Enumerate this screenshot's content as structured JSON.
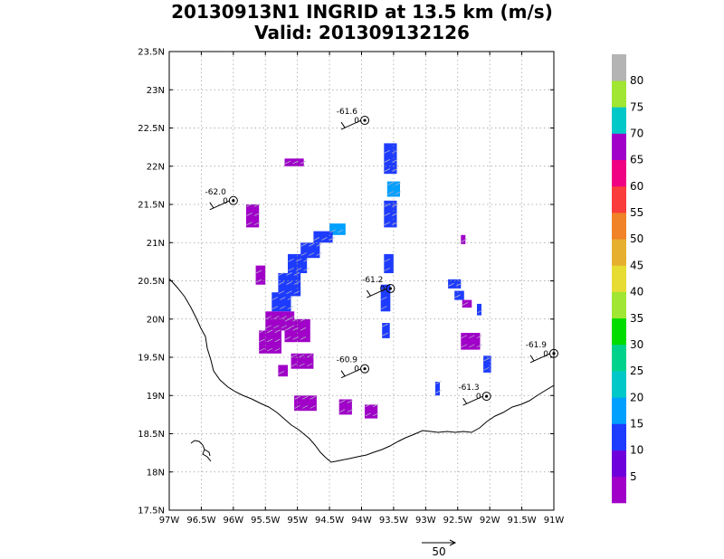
{
  "chart_data": {
    "type": "heatmap",
    "title_line1": "20130913N1 INGRID at 13.5 km (m/s)",
    "title_line2": "Valid: 201309132126",
    "xlim": [
      -97,
      -91
    ],
    "ylim": [
      17.5,
      23.5
    ],
    "x_ticks": [
      {
        "v": -97,
        "label": "97W"
      },
      {
        "v": -96.5,
        "label": "96.5W"
      },
      {
        "v": -96,
        "label": "96W"
      },
      {
        "v": -95.5,
        "label": "95.5W"
      },
      {
        "v": -95,
        "label": "95W"
      },
      {
        "v": -94.5,
        "label": "94.5W"
      },
      {
        "v": -94,
        "label": "94W"
      },
      {
        "v": -93.5,
        "label": "93.5W"
      },
      {
        "v": -93,
        "label": "93W"
      },
      {
        "v": -92.5,
        "label": "92.5W"
      },
      {
        "v": -92,
        "label": "92W"
      },
      {
        "v": -91.5,
        "label": "91.5W"
      },
      {
        "v": -91,
        "label": "91W"
      }
    ],
    "y_ticks": [
      {
        "v": 17.5,
        "label": "17.5N"
      },
      {
        "v": 18,
        "label": "18N"
      },
      {
        "v": 18.5,
        "label": "18.5N"
      },
      {
        "v": 19,
        "label": "19N"
      },
      {
        "v": 19.5,
        "label": "19.5N"
      },
      {
        "v": 20,
        "label": "20N"
      },
      {
        "v": 20.5,
        "label": "20.5N"
      },
      {
        "v": 21,
        "label": "21N"
      },
      {
        "v": 21.5,
        "label": "21.5N"
      },
      {
        "v": 22,
        "label": "22N"
      },
      {
        "v": 22.5,
        "label": "22.5N"
      },
      {
        "v": 23,
        "label": "23N"
      },
      {
        "v": 23.5,
        "label": "23.5N"
      }
    ],
    "grid": true,
    "colorbar": {
      "levels": [
        0,
        5,
        10,
        15,
        20,
        25,
        30,
        35,
        40,
        45,
        50,
        55,
        60,
        65,
        70,
        75,
        80,
        85
      ],
      "colors": [
        "#a000c8",
        "#6e00dc",
        "#1e3cff",
        "#00a0ff",
        "#00c8c8",
        "#00d28c",
        "#00dc00",
        "#a0e632",
        "#e6dc32",
        "#e6af2d",
        "#f08228",
        "#fa3c3c",
        "#f00082",
        "#a000c8",
        "#00c8c8",
        "#a0e632",
        "#b4b4b4"
      ],
      "labels": [
        {
          "v": 5,
          "label": "5"
        },
        {
          "v": 10,
          "label": "10"
        },
        {
          "v": 15,
          "label": "15"
        },
        {
          "v": 20,
          "label": "20"
        },
        {
          "v": 25,
          "label": "25"
        },
        {
          "v": 30,
          "label": "30"
        },
        {
          "v": 35,
          "label": "35"
        },
        {
          "v": 40,
          "label": "40"
        },
        {
          "v": 45,
          "label": "45"
        },
        {
          "v": 50,
          "label": "50"
        },
        {
          "v": 55,
          "label": "55"
        },
        {
          "v": 60,
          "label": "60"
        },
        {
          "v": 65,
          "label": "65"
        },
        {
          "v": 70,
          "label": "70"
        },
        {
          "v": 75,
          "label": "75"
        },
        {
          "v": 80,
          "label": "80"
        }
      ]
    },
    "reference_vector_label": "50",
    "cell_size_deg": 0.1,
    "cells": [
      {
        "lon": -95.2,
        "lat": 22.0,
        "w": 0.3,
        "h": 0.1,
        "value": 3
      },
      {
        "lon": -95.8,
        "lat": 21.2,
        "w": 0.2,
        "h": 0.3,
        "value": 3
      },
      {
        "lon": -93.65,
        "lat": 21.9,
        "w": 0.2,
        "h": 0.4,
        "value": 12
      },
      {
        "lon": -93.6,
        "lat": 21.6,
        "w": 0.2,
        "h": 0.2,
        "value": 17
      },
      {
        "lon": -93.65,
        "lat": 21.2,
        "w": 0.2,
        "h": 0.35,
        "value": 12
      },
      {
        "lon": -94.5,
        "lat": 21.1,
        "w": 0.25,
        "h": 0.15,
        "value": 17
      },
      {
        "lon": -94.75,
        "lat": 21.0,
        "w": 0.3,
        "h": 0.15,
        "value": 12
      },
      {
        "lon": -94.95,
        "lat": 20.8,
        "w": 0.3,
        "h": 0.2,
        "value": 12
      },
      {
        "lon": -95.15,
        "lat": 20.6,
        "w": 0.3,
        "h": 0.25,
        "value": 12
      },
      {
        "lon": -95.3,
        "lat": 20.3,
        "w": 0.35,
        "h": 0.3,
        "value": 12
      },
      {
        "lon": -95.4,
        "lat": 20.1,
        "w": 0.3,
        "h": 0.25,
        "value": 12
      },
      {
        "lon": -95.65,
        "lat": 20.45,
        "w": 0.15,
        "h": 0.25,
        "value": 3
      },
      {
        "lon": -95.5,
        "lat": 19.85,
        "w": 0.45,
        "h": 0.25,
        "value": 3
      },
      {
        "lon": -95.6,
        "lat": 19.55,
        "w": 0.35,
        "h": 0.3,
        "value": 3
      },
      {
        "lon": -95.2,
        "lat": 19.7,
        "w": 0.4,
        "h": 0.3,
        "value": 3
      },
      {
        "lon": -95.1,
        "lat": 19.35,
        "w": 0.35,
        "h": 0.2,
        "value": 3
      },
      {
        "lon": -95.3,
        "lat": 19.25,
        "w": 0.15,
        "h": 0.15,
        "value": 3
      },
      {
        "lon": -93.65,
        "lat": 20.6,
        "w": 0.15,
        "h": 0.25,
        "value": 12
      },
      {
        "lon": -93.7,
        "lat": 20.1,
        "w": 0.15,
        "h": 0.35,
        "value": 12
      },
      {
        "lon": -93.68,
        "lat": 19.75,
        "w": 0.12,
        "h": 0.2,
        "value": 12
      },
      {
        "lon": -92.65,
        "lat": 20.4,
        "w": 0.2,
        "h": 0.12,
        "value": 12
      },
      {
        "lon": -92.55,
        "lat": 20.25,
        "w": 0.15,
        "h": 0.12,
        "value": 12
      },
      {
        "lon": -92.43,
        "lat": 20.15,
        "w": 0.15,
        "h": 0.1,
        "value": 3
      },
      {
        "lon": -92.2,
        "lat": 20.05,
        "w": 0.07,
        "h": 0.15,
        "value": 12
      },
      {
        "lon": -92.45,
        "lat": 20.98,
        "w": 0.07,
        "h": 0.12,
        "value": 3
      },
      {
        "lon": -92.45,
        "lat": 19.6,
        "w": 0.3,
        "h": 0.22,
        "value": 3
      },
      {
        "lon": -92.1,
        "lat": 19.3,
        "w": 0.12,
        "h": 0.22,
        "value": 12
      },
      {
        "lon": -92.85,
        "lat": 19.0,
        "w": 0.07,
        "h": 0.18,
        "value": 12
      },
      {
        "lon": -95.05,
        "lat": 18.8,
        "w": 0.35,
        "h": 0.2,
        "value": 3
      },
      {
        "lon": -94.35,
        "lat": 18.75,
        "w": 0.2,
        "h": 0.2,
        "value": 3
      },
      {
        "lon": -93.95,
        "lat": 18.7,
        "w": 0.2,
        "h": 0.18,
        "value": 3
      }
    ],
    "stations": [
      {
        "lon": -93.95,
        "lat": 22.6,
        "label_top": "-61.6",
        "label_bottom": "0"
      },
      {
        "lon": -96.0,
        "lat": 21.55,
        "label_top": "-62.0",
        "label_bottom": "0"
      },
      {
        "lon": -93.55,
        "lat": 20.4,
        "label_top": "-61.2",
        "label_bottom": "0"
      },
      {
        "lon": -93.95,
        "lat": 19.35,
        "label_top": "-60.9",
        "label_bottom": "0"
      },
      {
        "lon": -92.05,
        "lat": 18.99,
        "label_top": "-61.3",
        "label_bottom": "0"
      },
      {
        "lon": -91.0,
        "lat": 19.55,
        "label_top": "-61.9",
        "label_bottom": "0"
      }
    ]
  }
}
